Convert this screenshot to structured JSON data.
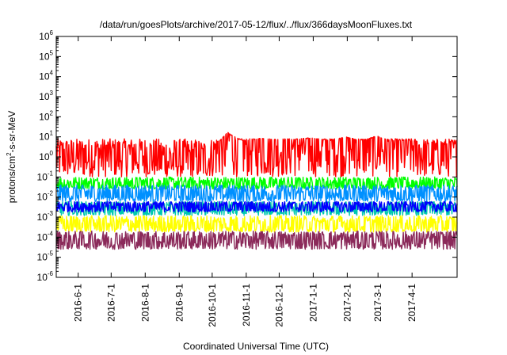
{
  "chart_data": {
    "type": "line",
    "title": "/data/run/goesPlots/archive/2017-05-12/flux/../flux/366daysMoonFluxes.txt",
    "xlabel": "Coordinated Universal Time (UTC)",
    "ylabel": {
      "prefix": "protons/cm",
      "superscript": "2",
      "suffix": "-s-sr-MeV"
    },
    "yscale": "log",
    "ylim": [
      1e-06,
      1000000.0
    ],
    "xlim": [
      "2016-05-12",
      "2017-05-12"
    ],
    "y_ticks": [
      {
        "base": "10",
        "exp": "-6",
        "value": 1e-06
      },
      {
        "base": "10",
        "exp": "-5",
        "value": 1e-05
      },
      {
        "base": "10",
        "exp": "-4",
        "value": 0.0001
      },
      {
        "base": "10",
        "exp": "-3",
        "value": 0.001
      },
      {
        "base": "10",
        "exp": "-2",
        "value": 0.01
      },
      {
        "base": "10",
        "exp": "-1",
        "value": 0.1
      },
      {
        "base": "10",
        "exp": "0",
        "value": 1
      },
      {
        "base": "10",
        "exp": "1",
        "value": 10
      },
      {
        "base": "10",
        "exp": "2",
        "value": 100
      },
      {
        "base": "10",
        "exp": "3",
        "value": 1000
      },
      {
        "base": "10",
        "exp": "4",
        "value": 10000
      },
      {
        "base": "10",
        "exp": "5",
        "value": 100000
      },
      {
        "base": "10",
        "exp": "6",
        "value": 1000000
      }
    ],
    "x_ticks": [
      {
        "label": "2016-6-1",
        "date": "2016-06-01"
      },
      {
        "label": "2016-7-1",
        "date": "2016-07-01"
      },
      {
        "label": "2016-8-1",
        "date": "2016-08-01"
      },
      {
        "label": "2016-9-1",
        "date": "2016-09-01"
      },
      {
        "label": "2016-10-1",
        "date": "2016-10-01"
      },
      {
        "label": "2016-11-1",
        "date": "2016-11-01"
      },
      {
        "label": "2016-12-1",
        "date": "2016-12-01"
      },
      {
        "label": "2017-1-1",
        "date": "2017-01-01"
      },
      {
        "label": "2017-2-1",
        "date": "2017-02-01"
      },
      {
        "label": "2017-3-1",
        "date": "2017-03-01"
      },
      {
        "label": "2017-4-1",
        "date": "2017-04-01"
      }
    ],
    "series": [
      {
        "color": "#ff0000",
        "band_low": 0.1,
        "band_high": 8,
        "points": [
          [
            "2016-05-12",
            1.5
          ],
          [
            "2016-05-25",
            1.2
          ],
          [
            "2016-06-10",
            1.5
          ],
          [
            "2016-06-25",
            2
          ],
          [
            "2016-07-10",
            1.5
          ],
          [
            "2016-07-25",
            2
          ],
          [
            "2016-08-10",
            1.2
          ],
          [
            "2016-08-25",
            0.6
          ],
          [
            "2016-09-10",
            0.8
          ],
          [
            "2016-09-25",
            0.5
          ],
          [
            "2016-10-05",
            4
          ],
          [
            "2016-10-15",
            15
          ],
          [
            "2016-10-30",
            5
          ],
          [
            "2016-11-15",
            8
          ],
          [
            "2016-11-30",
            6
          ],
          [
            "2016-12-15",
            7
          ],
          [
            "2016-12-30",
            8
          ],
          [
            "2017-01-15",
            6
          ],
          [
            "2017-01-30",
            9
          ],
          [
            "2017-02-15",
            6
          ],
          [
            "2017-02-28",
            10
          ],
          [
            "2017-03-15",
            5
          ],
          [
            "2017-03-30",
            6
          ],
          [
            "2017-04-10",
            2
          ],
          [
            "2017-04-20",
            1.2
          ],
          [
            "2017-04-30",
            3
          ],
          [
            "2017-05-12",
            2
          ]
        ]
      },
      {
        "color": "#00ff00",
        "band_low": 0.025,
        "band_high": 0.1,
        "points": [
          [
            "2016-05-12",
            0.045
          ],
          [
            "2017-05-12",
            0.045
          ]
        ]
      },
      {
        "color": "#0090ff",
        "band_low": 0.006,
        "band_high": 0.04,
        "points": [
          [
            "2016-05-12",
            0.014
          ],
          [
            "2017-05-12",
            0.014
          ]
        ]
      },
      {
        "color": "#00c8b0",
        "band_low": 0.0012,
        "band_high": 0.006,
        "points": [
          [
            "2016-05-12",
            0.0025
          ],
          [
            "2017-05-12",
            0.0025
          ]
        ]
      },
      {
        "color": "#0000ff",
        "band_low": 0.0018,
        "band_high": 0.006,
        "points": [
          [
            "2016-05-12",
            0.0035
          ],
          [
            "2017-05-12",
            0.0035
          ]
        ]
      },
      {
        "color": "#ffff00",
        "band_low": 0.00018,
        "band_high": 0.0012,
        "points": [
          [
            "2016-05-12",
            0.0004
          ],
          [
            "2017-05-12",
            0.0004
          ]
        ]
      },
      {
        "color": "#8b2a5a",
        "band_low": 2.5e-05,
        "band_high": 0.0002,
        "points": [
          [
            "2016-05-12",
            7e-05
          ],
          [
            "2017-05-12",
            7e-05
          ]
        ]
      }
    ],
    "grid": false,
    "legend": false
  }
}
